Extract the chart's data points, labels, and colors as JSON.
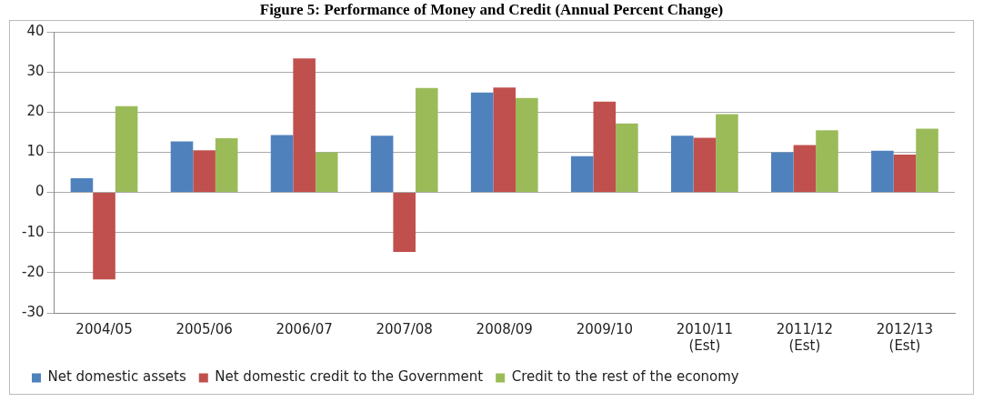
{
  "chart_data": {
    "type": "bar",
    "title": "Figure 5: Performance of Money and Credit (Annual Percent Change)",
    "categories": [
      "2004/05",
      "2005/06",
      "2006/07",
      "2007/08",
      "2008/09",
      "2009/10",
      "2010/11 (Est)",
      "2011/12 (Est)",
      "2012/13 (Est)"
    ],
    "series": [
      {
        "name": "Net domestic assets",
        "color": "#4f81bd",
        "values": [
          3.5,
          12.7,
          14.3,
          14.1,
          24.9,
          9.0,
          14.1,
          10.0,
          10.4
        ]
      },
      {
        "name": "Net domestic credit to the Government",
        "color": "#c0504d",
        "values": [
          -21.7,
          10.5,
          33.4,
          -14.8,
          26.1,
          22.6,
          13.6,
          11.8,
          9.4
        ]
      },
      {
        "name": "Credit to the rest of the economy",
        "color": "#9bbb59",
        "values": [
          21.5,
          13.5,
          10.0,
          26.0,
          23.5,
          17.2,
          19.5,
          15.5,
          15.9
        ]
      }
    ],
    "ylim": [
      -30,
      40
    ],
    "yticks": [
      -30,
      -20,
      -10,
      0,
      10,
      20,
      30,
      40
    ],
    "grid": "y",
    "legend": "bottom"
  }
}
